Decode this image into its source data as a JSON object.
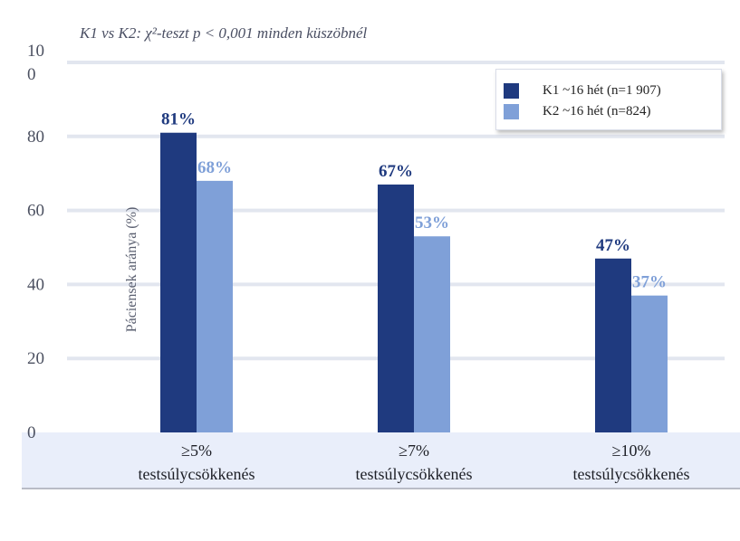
{
  "chart_data": {
    "type": "bar",
    "title": "",
    "subtitle": "K1 vs K2: χ²-teszt p < 0,001 minden küszöbnél",
    "xlabel": "",
    "ylabel": "Páciensek aránya (%)",
    "ylim": [
      0,
      100
    ],
    "yticks": [
      "0",
      "20",
      "40",
      "60",
      "80",
      "10\n0"
    ],
    "grid": true,
    "legend_position": "top-right",
    "categories": [
      "≥5% testsúlycsökkenés",
      "≥7% testsúlycsökkenés",
      "≥10% testsúlycsökkenés"
    ],
    "category_lines": [
      [
        "≥5%",
        "testsúlycsökkenés"
      ],
      [
        "≥7%",
        "testsúlycsökkenés"
      ],
      [
        "≥10%",
        "testsúlycsökkenés"
      ]
    ],
    "series": [
      {
        "name": "K1 ~16 hét  (n=1 907)",
        "color": "#1f3a7f",
        "values": [
          81,
          67,
          47
        ],
        "labels": [
          "81%",
          "67%",
          "47%"
        ]
      },
      {
        "name": "K2 ~16 hét  (n=824)",
        "color": "#7fa0d8",
        "values": [
          68,
          53,
          37
        ],
        "labels": [
          "68%",
          "53%",
          "37%"
        ]
      }
    ]
  }
}
